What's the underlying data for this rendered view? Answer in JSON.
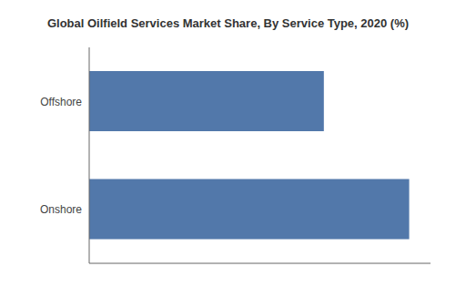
{
  "chart_data": {
    "type": "bar",
    "title": "Global Oilfield Services Market Share, By Service Type, 2020 (%)",
    "orientation": "horizontal",
    "categories": [
      "Onshore",
      "Offshore"
    ],
    "values": [
      75,
      55
    ],
    "color": "#5278aa",
    "xlim": [
      0,
      80
    ],
    "tick_labels": "y",
    "grid": false
  }
}
